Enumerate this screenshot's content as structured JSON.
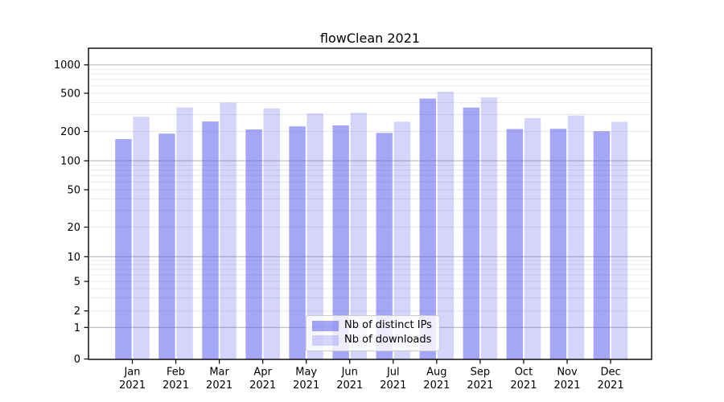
{
  "chart_data": {
    "type": "bar",
    "title": "flowClean 2021",
    "xlabel": "",
    "ylabel": "",
    "categories": [
      "Jan",
      "Feb",
      "Mar",
      "Apr",
      "May",
      "Jun",
      "Jul",
      "Aug",
      "Sep",
      "Oct",
      "Nov",
      "Dec"
    ],
    "year": "2021",
    "series": [
      {
        "name": "Nb of distinct IPs",
        "color": "#4d4ded",
        "opacity": 0.5,
        "values": [
          167,
          190,
          254,
          210,
          226,
          231,
          193,
          440,
          355,
          212,
          213,
          201
        ]
      },
      {
        "name": "Nb of downloads",
        "color": "#4d4ded",
        "opacity": 0.235,
        "values": [
          285,
          355,
          400,
          348,
          308,
          313,
          253,
          520,
          452,
          275,
          293,
          252
        ]
      }
    ],
    "yscale": "log-with-zero (symlog-like)",
    "yticks": [
      0,
      1,
      2,
      5,
      10,
      20,
      50,
      100,
      200,
      500,
      1000
    ],
    "ylim": [
      0,
      1500
    ],
    "grid": "horizontal major and minor gridlines",
    "grid_major_color": "#b2b2b2",
    "grid_minor_color": "#e8e8e8",
    "legend_position": "lower center, inside plot",
    "background_color": "#ffffff",
    "spine_color": "#000000",
    "text_color": "#000000"
  }
}
